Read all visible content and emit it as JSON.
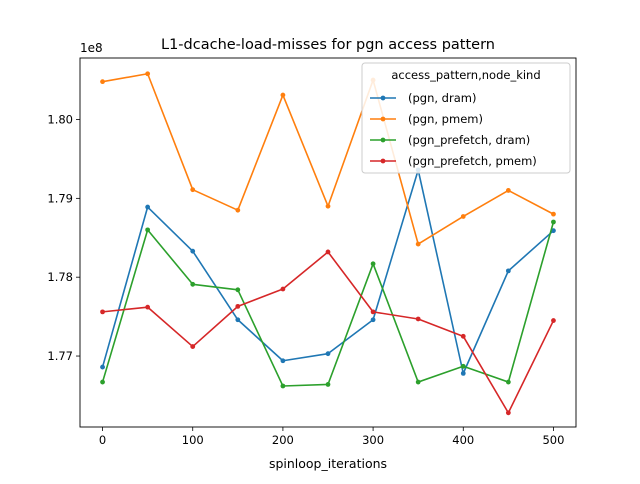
{
  "chart_data": {
    "type": "line",
    "title": "L1-dcache-load-misses for pgn access pattern",
    "xlabel": "spinloop_iterations",
    "ylabel": "",
    "y_offset_label": "1e8",
    "x_ticks": [
      "0",
      "100",
      "200",
      "300",
      "400",
      "500"
    ],
    "y_ticks": [
      "1.77",
      "1.78",
      "1.79",
      "1.80"
    ],
    "xlim": [
      -25,
      525
    ],
    "ylim": [
      1.761,
      1.8078
    ],
    "grid": false,
    "legend_title": "access_pattern,node_kind",
    "legend_position": "top-right",
    "x": [
      0,
      50,
      100,
      150,
      200,
      250,
      300,
      350,
      400,
      450,
      500
    ],
    "series": [
      {
        "name": "(pgn, dram)",
        "color": "#1f77b4",
        "values": [
          1.7686,
          1.7889,
          1.7833,
          1.7746,
          1.7694,
          1.7703,
          1.7746,
          1.7936,
          1.7678,
          1.7808,
          1.7859
        ]
      },
      {
        "name": "(pgn, pmem)",
        "color": "#ff7f0e",
        "values": [
          1.8048,
          1.8058,
          1.7911,
          1.7885,
          1.8031,
          1.789,
          1.805,
          1.7842,
          1.7877,
          1.791,
          1.788
        ]
      },
      {
        "name": "(pgn_prefetch, dram)",
        "color": "#2ca02c",
        "values": [
          1.7667,
          1.786,
          1.7791,
          1.7784,
          1.7662,
          1.7664,
          1.7817,
          1.7667,
          1.7687,
          1.7667,
          1.787
        ]
      },
      {
        "name": "(pgn_prefetch, pmem)",
        "color": "#d62728",
        "values": [
          1.7756,
          1.7762,
          1.7712,
          1.7763,
          1.7785,
          1.7832,
          1.7756,
          1.7747,
          1.7725,
          1.7628,
          1.7745
        ]
      }
    ]
  }
}
